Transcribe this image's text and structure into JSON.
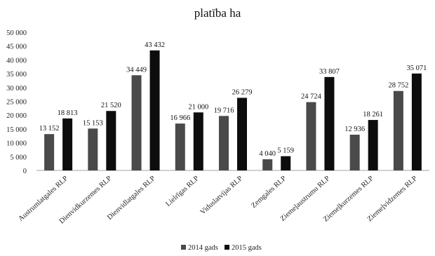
{
  "chart_data": {
    "type": "bar",
    "title": "platība ha",
    "categories": [
      "Austrumlatgales RLP",
      "Dienvidkurzemes RLP",
      "Dienvidlatgales RLP",
      "Lielrīgas RLP",
      "Viduslatvijas RLP",
      "Zemgales RLP",
      "Ziemeļaustrumu RLP",
      "Ziemeļkurzemes RLP",
      "Ziemeļvidzemes RLP"
    ],
    "series": [
      {
        "name": "2014 gads",
        "color": "#4a4a4a",
        "values": [
          13152,
          15153,
          34449,
          16966,
          19716,
          4040,
          24724,
          12936,
          28752
        ],
        "labels": [
          "13 152",
          "15 153",
          "34 449",
          "16 966",
          "19 716",
          "4 040",
          "24 724",
          "12 936",
          "28 752"
        ]
      },
      {
        "name": "2015 gads",
        "color": "#0d0d0d",
        "values": [
          18813,
          21520,
          43432,
          21000,
          26279,
          5159,
          33807,
          18261,
          35071
        ],
        "labels": [
          "18 813",
          "21 520",
          "43 432",
          "21 000",
          "26 279",
          "5 159",
          "33 807",
          "18 261",
          "35 071"
        ]
      }
    ],
    "yticks": [
      0,
      5000,
      10000,
      15000,
      20000,
      25000,
      30000,
      35000,
      40000,
      45000,
      50000
    ],
    "ytick_labels": [
      "0",
      "5 000",
      "10 000",
      "15 000",
      "20 000",
      "25 000",
      "30 000",
      "35 000",
      "40 000",
      "45 000",
      "50 000"
    ],
    "ylim": [
      0,
      50000
    ],
    "xlabel": "",
    "ylabel": "",
    "grid": false,
    "legend_position": "bottom"
  }
}
